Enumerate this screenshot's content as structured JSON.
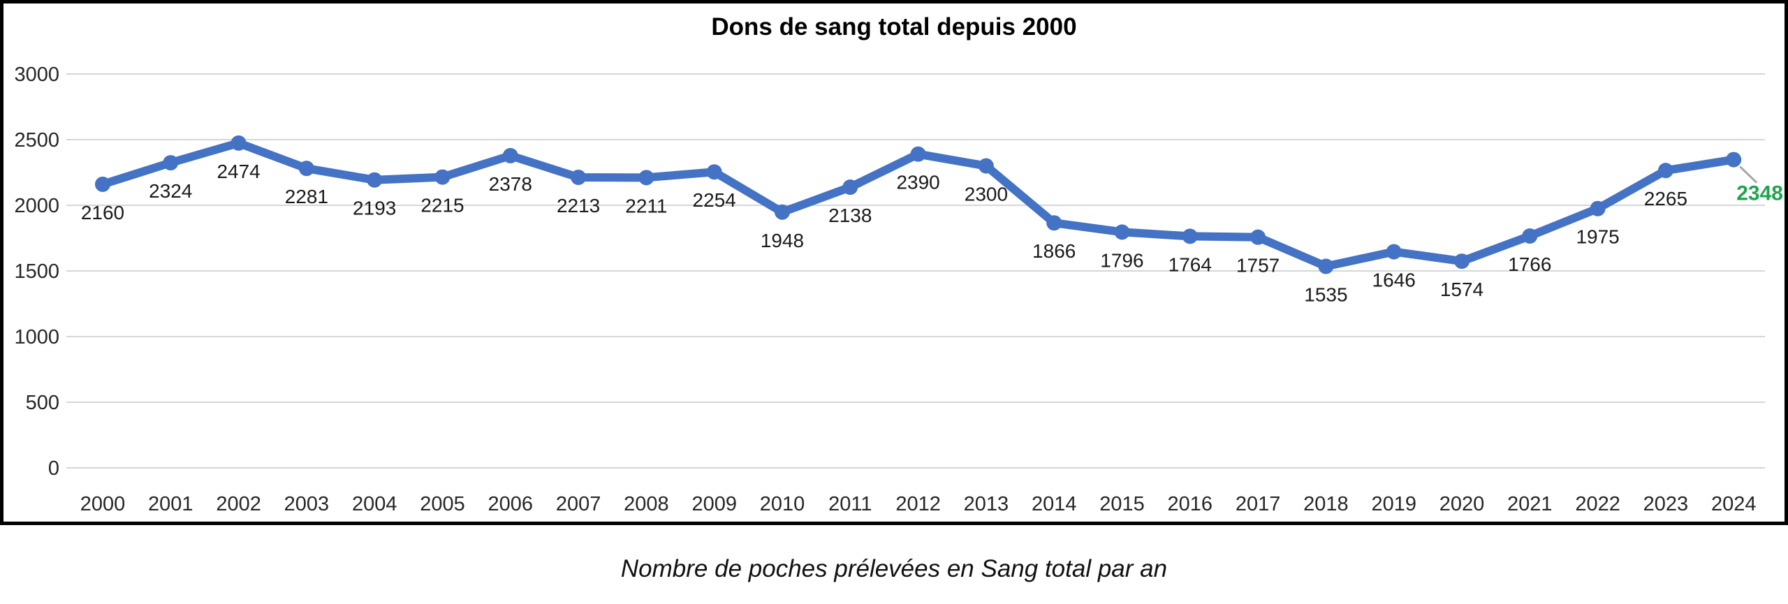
{
  "title": "Dons de sang total depuis 2000",
  "caption": "Nombre de poches prélevées en Sang total par an",
  "chart_data": {
    "type": "line",
    "title": "Dons de sang total depuis 2000",
    "categories": [
      "2000",
      "2001",
      "2002",
      "2003",
      "2004",
      "2005",
      "2006",
      "2007",
      "2008",
      "2009",
      "2010",
      "2011",
      "2012",
      "2013",
      "2014",
      "2015",
      "2016",
      "2017",
      "2018",
      "2019",
      "2020",
      "2021",
      "2022",
      "2023",
      "2024"
    ],
    "values": [
      2160,
      2324,
      2474,
      2281,
      2193,
      2215,
      2378,
      2213,
      2211,
      2254,
      1948,
      2138,
      2390,
      2300,
      1866,
      1796,
      1764,
      1757,
      1535,
      1646,
      1574,
      1766,
      1975,
      2265,
      2348
    ],
    "xlabel": "",
    "ylabel": "",
    "ylim": [
      0,
      3000
    ],
    "yticks": [
      0,
      500,
      1000,
      1500,
      2000,
      2500,
      3000
    ],
    "grid": true,
    "legend_position": "none",
    "data_labels": "below-points",
    "highlighted_last_value": 2348,
    "colors": {
      "line": "#4472C4",
      "marker": "#4472C4",
      "gridline": "#D6D6D6",
      "axis_text": "#262626",
      "data_label_text": "#1a1a1a",
      "highlight_label_text": "#20A44F",
      "leader_line": "#A6A6A6",
      "frame_border": "#000000"
    }
  }
}
